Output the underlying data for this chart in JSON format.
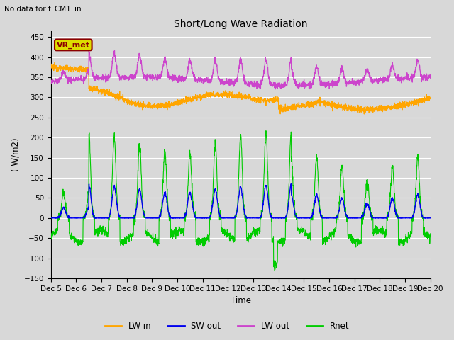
{
  "title": "Short/Long Wave Radiation",
  "subtitle": "No data for f_CM1_in",
  "xlabel": "Time",
  "ylabel": "( W/m2)",
  "ylim": [
    -150,
    465
  ],
  "yticks": [
    -150,
    -100,
    -50,
    0,
    50,
    100,
    150,
    200,
    250,
    300,
    350,
    400,
    450
  ],
  "xticklabels": [
    "Dec 5",
    "Dec 6",
    "Dec 7",
    "Dec 8",
    "Dec 9",
    "Dec 10",
    "Dec 11",
    "Dec 12",
    "Dec 13",
    "Dec 14",
    "Dec 15",
    "Dec 16",
    "Dec 17",
    "Dec 18",
    "Dec 19",
    "Dec 20"
  ],
  "background_color": "#d8d8d8",
  "plot_bg_color": "#d8d8d8",
  "lw_in_color": "#FFA500",
  "sw_out_color": "#0000EE",
  "lw_out_color": "#CC44CC",
  "rnet_color": "#00CC00",
  "legend_box_facecolor": "#DDDD00",
  "legend_box_edgecolor": "#8B0000",
  "legend_box_text": "VR_met",
  "grid_color": "#ffffff",
  "n_days": 15,
  "n_pts_per_day": 144
}
